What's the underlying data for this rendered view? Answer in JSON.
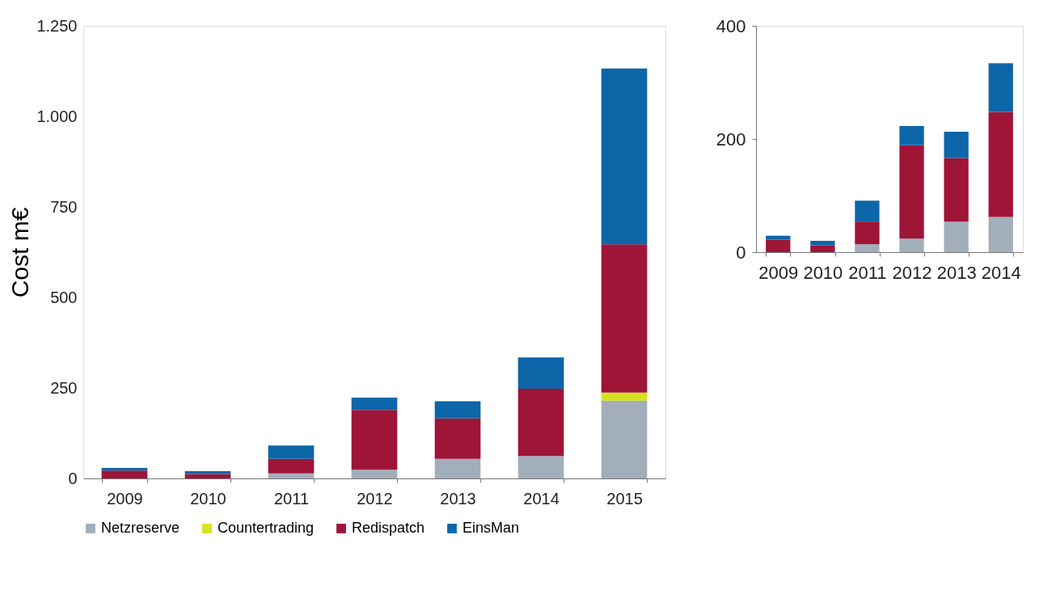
{
  "chart_data": [
    {
      "type": "bar",
      "stacked": true,
      "ylabel": "Cost m€",
      "legend": "bottom",
      "grid": false,
      "categories": [
        "2009",
        "2010",
        "2011",
        "2012",
        "2013",
        "2014",
        "2015"
      ],
      "ylim": [
        0,
        1250
      ],
      "yticks": [
        0,
        250,
        500,
        750,
        {
          "value": 1000,
          "label": "1.000"
        },
        {
          "value": 1250,
          "label": "1.250"
        }
      ],
      "series": [
        {
          "name": "Netzreserve",
          "color": "#a3aebb",
          "values": [
            0,
            0,
            14,
            24,
            54,
            62,
            215
          ]
        },
        {
          "name": "Countertrading",
          "color": "#d4e31c",
          "values": [
            0,
            0,
            0,
            0,
            0,
            0,
            22
          ]
        },
        {
          "name": "Redispatch",
          "color": "#9e1538",
          "values": [
            22,
            12,
            40,
            165,
            112,
            186,
            410
          ]
        },
        {
          "name": "EinsMan",
          "color": "#0d66a8",
          "values": [
            7,
            8,
            37,
            34,
            47,
            86,
            485
          ]
        }
      ]
    },
    {
      "type": "bar",
      "stacked": true,
      "legend": false,
      "grid": false,
      "categories": [
        "2009",
        "2010",
        "2011",
        "2012",
        "2013",
        "2014"
      ],
      "ylim": [
        0,
        400
      ],
      "yticks": [
        0,
        200,
        400
      ],
      "series": [
        {
          "color": "#a3aebb",
          "values": [
            0,
            0,
            14,
            24,
            54,
            62
          ]
        },
        {
          "color": "#d4e31c",
          "values": [
            0,
            0,
            0,
            0,
            0,
            0
          ]
        },
        {
          "color": "#9e1538",
          "values": [
            22,
            12,
            40,
            165,
            112,
            186
          ]
        },
        {
          "color": "#0d66a8",
          "values": [
            7,
            8,
            37,
            34,
            47,
            86
          ]
        }
      ]
    }
  ]
}
